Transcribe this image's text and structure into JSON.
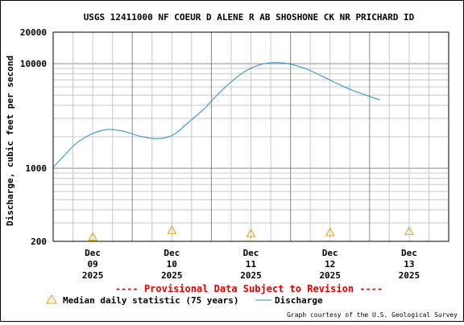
{
  "chart_data": {
    "type": "line",
    "title": "USGS 12411000 NF COEUR D ALENE R AB SHOSHONE CK NR PRICHARD ID",
    "ylabel": "Discharge, cubic feet per second",
    "y_scale": "log",
    "ylim": [
      200,
      20000
    ],
    "y_tick_labels": [
      "20000",
      "10000",
      "1000",
      "200"
    ],
    "x_tick_labels": [
      [
        "Dec",
        "09",
        "2025"
      ],
      [
        "Dec",
        "10",
        "2025"
      ],
      [
        "Dec",
        "11",
        "2025"
      ],
      [
        "Dec",
        "12",
        "2025"
      ],
      [
        "Dec",
        "13",
        "2025"
      ]
    ],
    "grid": true,
    "series": [
      {
        "name": "Discharge",
        "color": "#1f8fd0",
        "x_days": [
          0.0,
          0.15,
          0.3,
          0.5,
          0.7,
          0.9,
          1.1,
          1.3,
          1.5,
          1.7,
          1.9,
          2.05,
          2.2,
          2.4,
          2.6,
          2.8,
          3.0,
          3.2,
          3.4,
          3.6,
          3.8,
          4.13
        ],
        "values": [
          1020,
          1350,
          1750,
          2150,
          2350,
          2250,
          2020,
          1920,
          2050,
          2700,
          3650,
          4800,
          6200,
          8200,
          9700,
          10250,
          9900,
          8900,
          7600,
          6400,
          5500,
          4500
        ]
      },
      {
        "name": "Median daily statistic (75 years)",
        "marker": "triangle",
        "color": "#e0a000",
        "x_days": [
          0.5,
          1.5,
          2.5,
          3.5,
          4.5
        ],
        "values": [
          220,
          255,
          238,
          243,
          249
        ]
      }
    ],
    "x_range_days": [
      0,
      5
    ]
  },
  "annotation": "---- Provisional Data Subject to Revision ----",
  "legend": {
    "median_label": "Median daily statistic (75 years)",
    "discharge_label": "Discharge"
  },
  "credit": "Graph courtesy of the U.S. Geological Survey"
}
